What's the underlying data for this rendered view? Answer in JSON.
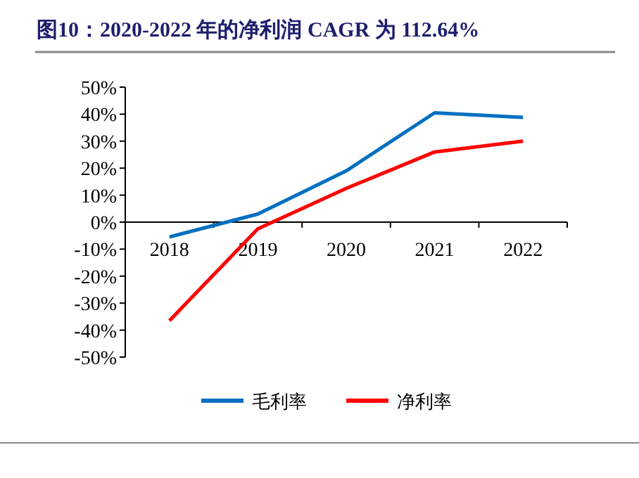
{
  "chart_data": {
    "type": "line",
    "title": "图10：2020-2022 年的净利润 CAGR 为 112.64%",
    "categories": [
      "2018",
      "2019",
      "2020",
      "2021",
      "2022"
    ],
    "series": [
      {
        "name": "毛利率",
        "color": "#0070c0",
        "values": [
          -5.5,
          3,
          19,
          40.5,
          38.8
        ]
      },
      {
        "name": "净利率",
        "color": "#ff0000",
        "values": [
          -36.5,
          -2.5,
          12.5,
          26,
          30
        ]
      }
    ],
    "ylim": [
      -50,
      50
    ],
    "yticks": [
      {
        "value": -50,
        "label": "-50%"
      },
      {
        "value": -40,
        "label": "-40%"
      },
      {
        "value": -30,
        "label": "-30%"
      },
      {
        "value": -20,
        "label": "-20%"
      },
      {
        "value": -10,
        "label": "-10%"
      },
      {
        "value": 0,
        "label": "0%"
      },
      {
        "value": 10,
        "label": "10%"
      },
      {
        "value": 20,
        "label": "20%"
      },
      {
        "value": 30,
        "label": "30%"
      },
      {
        "value": 40,
        "label": "40%"
      },
      {
        "value": 50,
        "label": "50%"
      }
    ],
    "grid": false,
    "legend": "bottom",
    "marker": "none",
    "line_style": "solid"
  }
}
